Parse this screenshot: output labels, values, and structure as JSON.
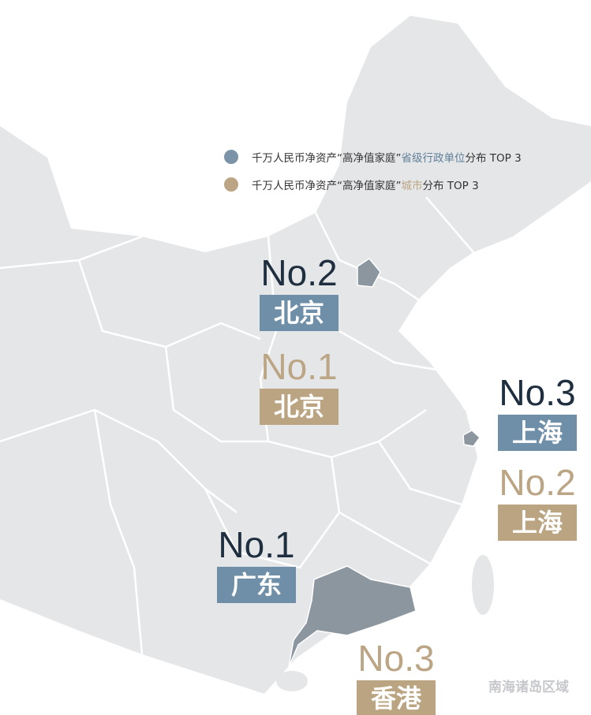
{
  "legend": [
    {
      "prefix": "千万人民币净资产“高净值家庭”",
      "highlight": "省级行政单位",
      "suffix": "分布 TOP 3"
    },
    {
      "prefix": "千万人民币净资产“高净值家庭”",
      "highlight": "城市",
      "suffix": "分布 TOP 3"
    }
  ],
  "labels": [
    {
      "rank": "No.2",
      "name": "北京"
    },
    {
      "rank": "No.1",
      "name": "北京"
    },
    {
      "rank": "No.3",
      "name": "上海"
    },
    {
      "rank": "No.2",
      "name": "上海"
    },
    {
      "rank": "No.1",
      "name": "广东"
    },
    {
      "rank": "No.3",
      "name": "香港"
    }
  ],
  "note": "南海诸岛区域"
}
